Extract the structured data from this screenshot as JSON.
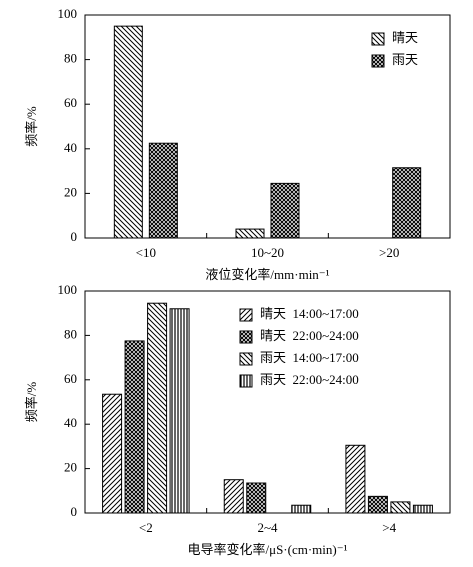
{
  "chart_data": [
    {
      "type": "bar",
      "categories": [
        "<10",
        "10~20",
        ">20"
      ],
      "series": [
        {
          "name": "晴天",
          "color": "#000000",
          "pattern": "backslash",
          "values": [
            95,
            4,
            0
          ]
        },
        {
          "name": "雨天",
          "color": "#000000",
          "pattern": "cross",
          "values": [
            42.5,
            24.5,
            31.5
          ]
        }
      ],
      "ylim": [
        0,
        100
      ],
      "yticks": [
        0,
        20,
        40,
        60,
        80,
        100
      ],
      "grid": false,
      "xlabel": "液位变化率/mm·min⁻¹",
      "ylabel": "频率/%",
      "legend": "upper right"
    },
    {
      "type": "bar",
      "categories": [
        "<2",
        "2~4",
        ">4"
      ],
      "series": [
        {
          "name": "晴天  14:00~17:00",
          "color": "#000000",
          "pattern": "slash",
          "values": [
            53.5,
            15,
            30.5
          ]
        },
        {
          "name": "晴天  22:00~24:00",
          "color": "#000000",
          "pattern": "cross",
          "values": [
            77.5,
            13.5,
            7.5
          ]
        },
        {
          "name": "雨天  14:00~17:00",
          "color": "#000000",
          "pattern": "backslash",
          "values": [
            94.5,
            0,
            5
          ]
        },
        {
          "name": "雨天  22:00~24:00",
          "color": "#000000",
          "pattern": "vertical",
          "values": [
            92,
            3.5,
            3.5
          ]
        }
      ],
      "ylim": [
        0,
        100
      ],
      "yticks": [
        0,
        20,
        40,
        60,
        80,
        100
      ],
      "grid": false,
      "xlabel": "电导率变化率/μS·(cm·min)⁻¹",
      "ylabel": "频率/%",
      "legend": "upper center"
    }
  ]
}
